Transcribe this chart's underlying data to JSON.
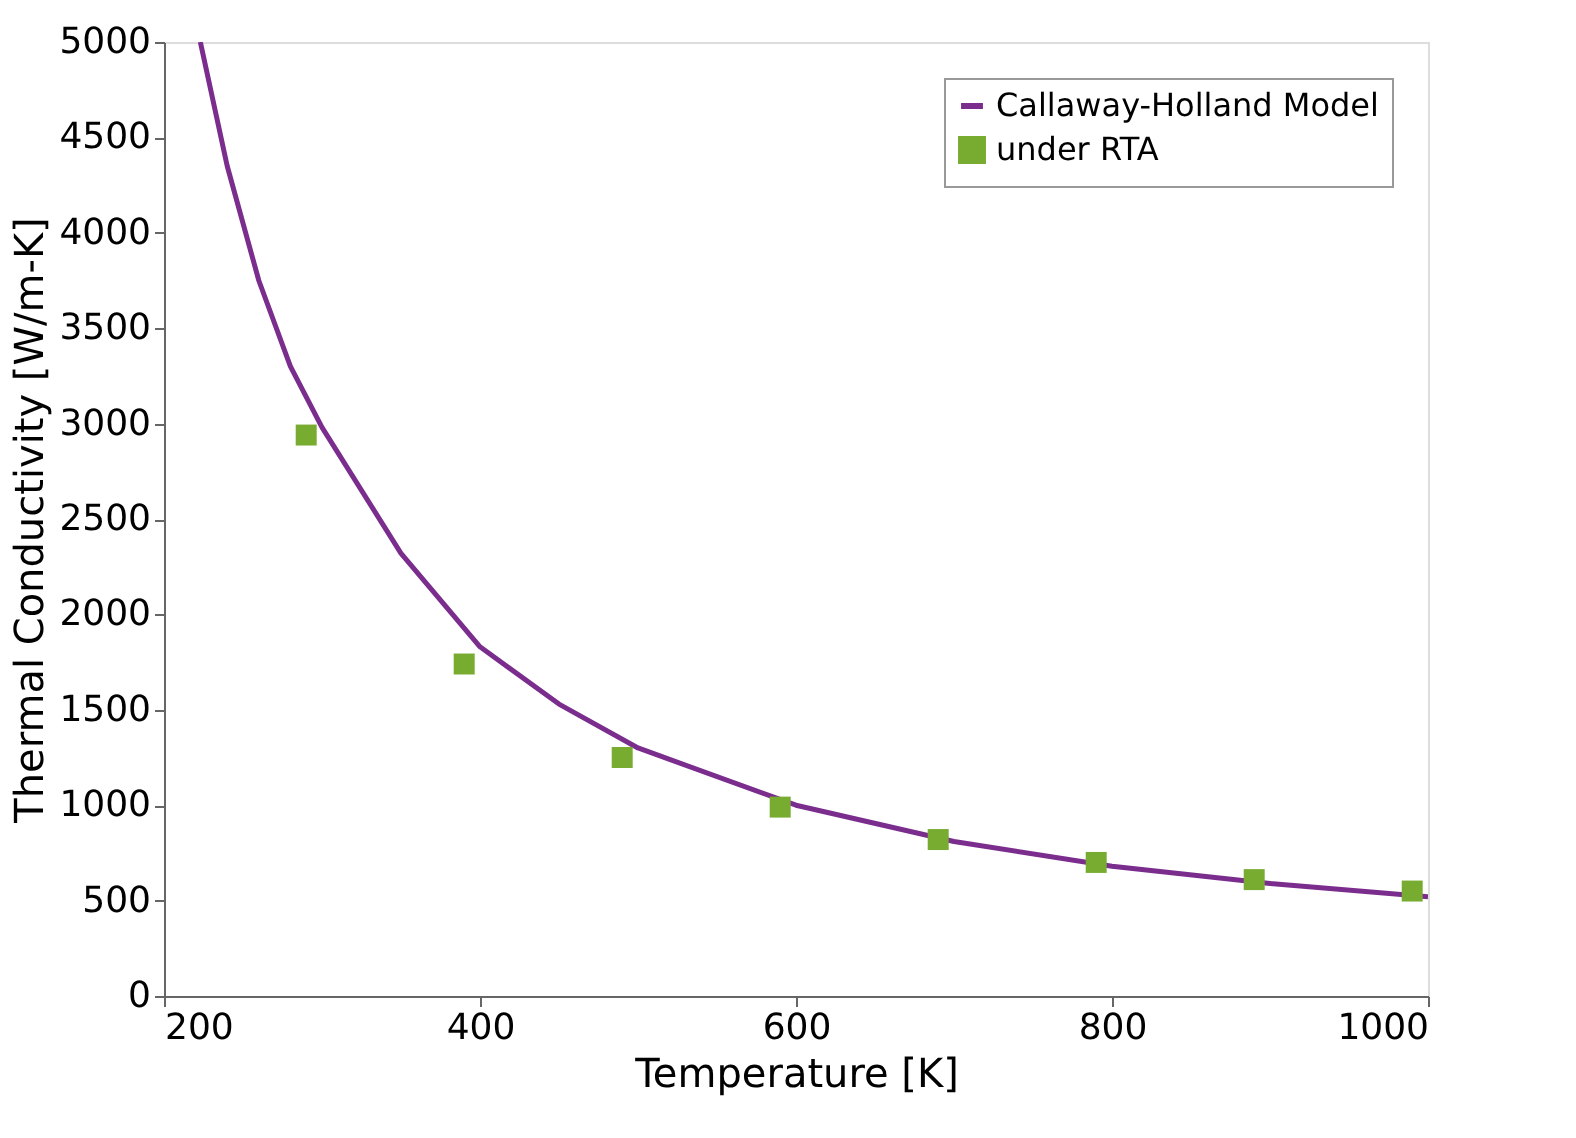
{
  "chart_data": {
    "type": "line",
    "xlabel": "Temperature [K]",
    "ylabel": "Thermal Conductivity [W/m-K]",
    "xlim": [
      200,
      1000
    ],
    "xticks": [
      200,
      400,
      600,
      800,
      1000
    ],
    "ylim": [
      0,
      5000
    ],
    "yticks": [
      0,
      500,
      1000,
      1500,
      2000,
      2500,
      3000,
      3500,
      4000,
      4500,
      5000
    ],
    "grid": false,
    "legend": "top right",
    "series": [
      {
        "name": "Callaway-Holland Model",
        "color": "#7b2d8e",
        "line_style": "solid",
        "x": [
          223,
          240,
          260,
          280,
          300,
          350,
          400,
          450,
          500,
          600,
          700,
          800,
          900,
          1000
        ],
        "values": [
          5000,
          4350,
          3750,
          3300,
          2980,
          2320,
          1830,
          1530,
          1300,
          1000,
          810,
          680,
          590,
          520
        ]
      },
      {
        "name": "under RTA",
        "type": "scatter",
        "color": "#77ac30",
        "marker": "square",
        "x": [
          290,
          390,
          490,
          590,
          690,
          790,
          890,
          990
        ],
        "values": [
          2940,
          1740,
          1250,
          990,
          820,
          700,
          610,
          550
        ]
      }
    ]
  }
}
